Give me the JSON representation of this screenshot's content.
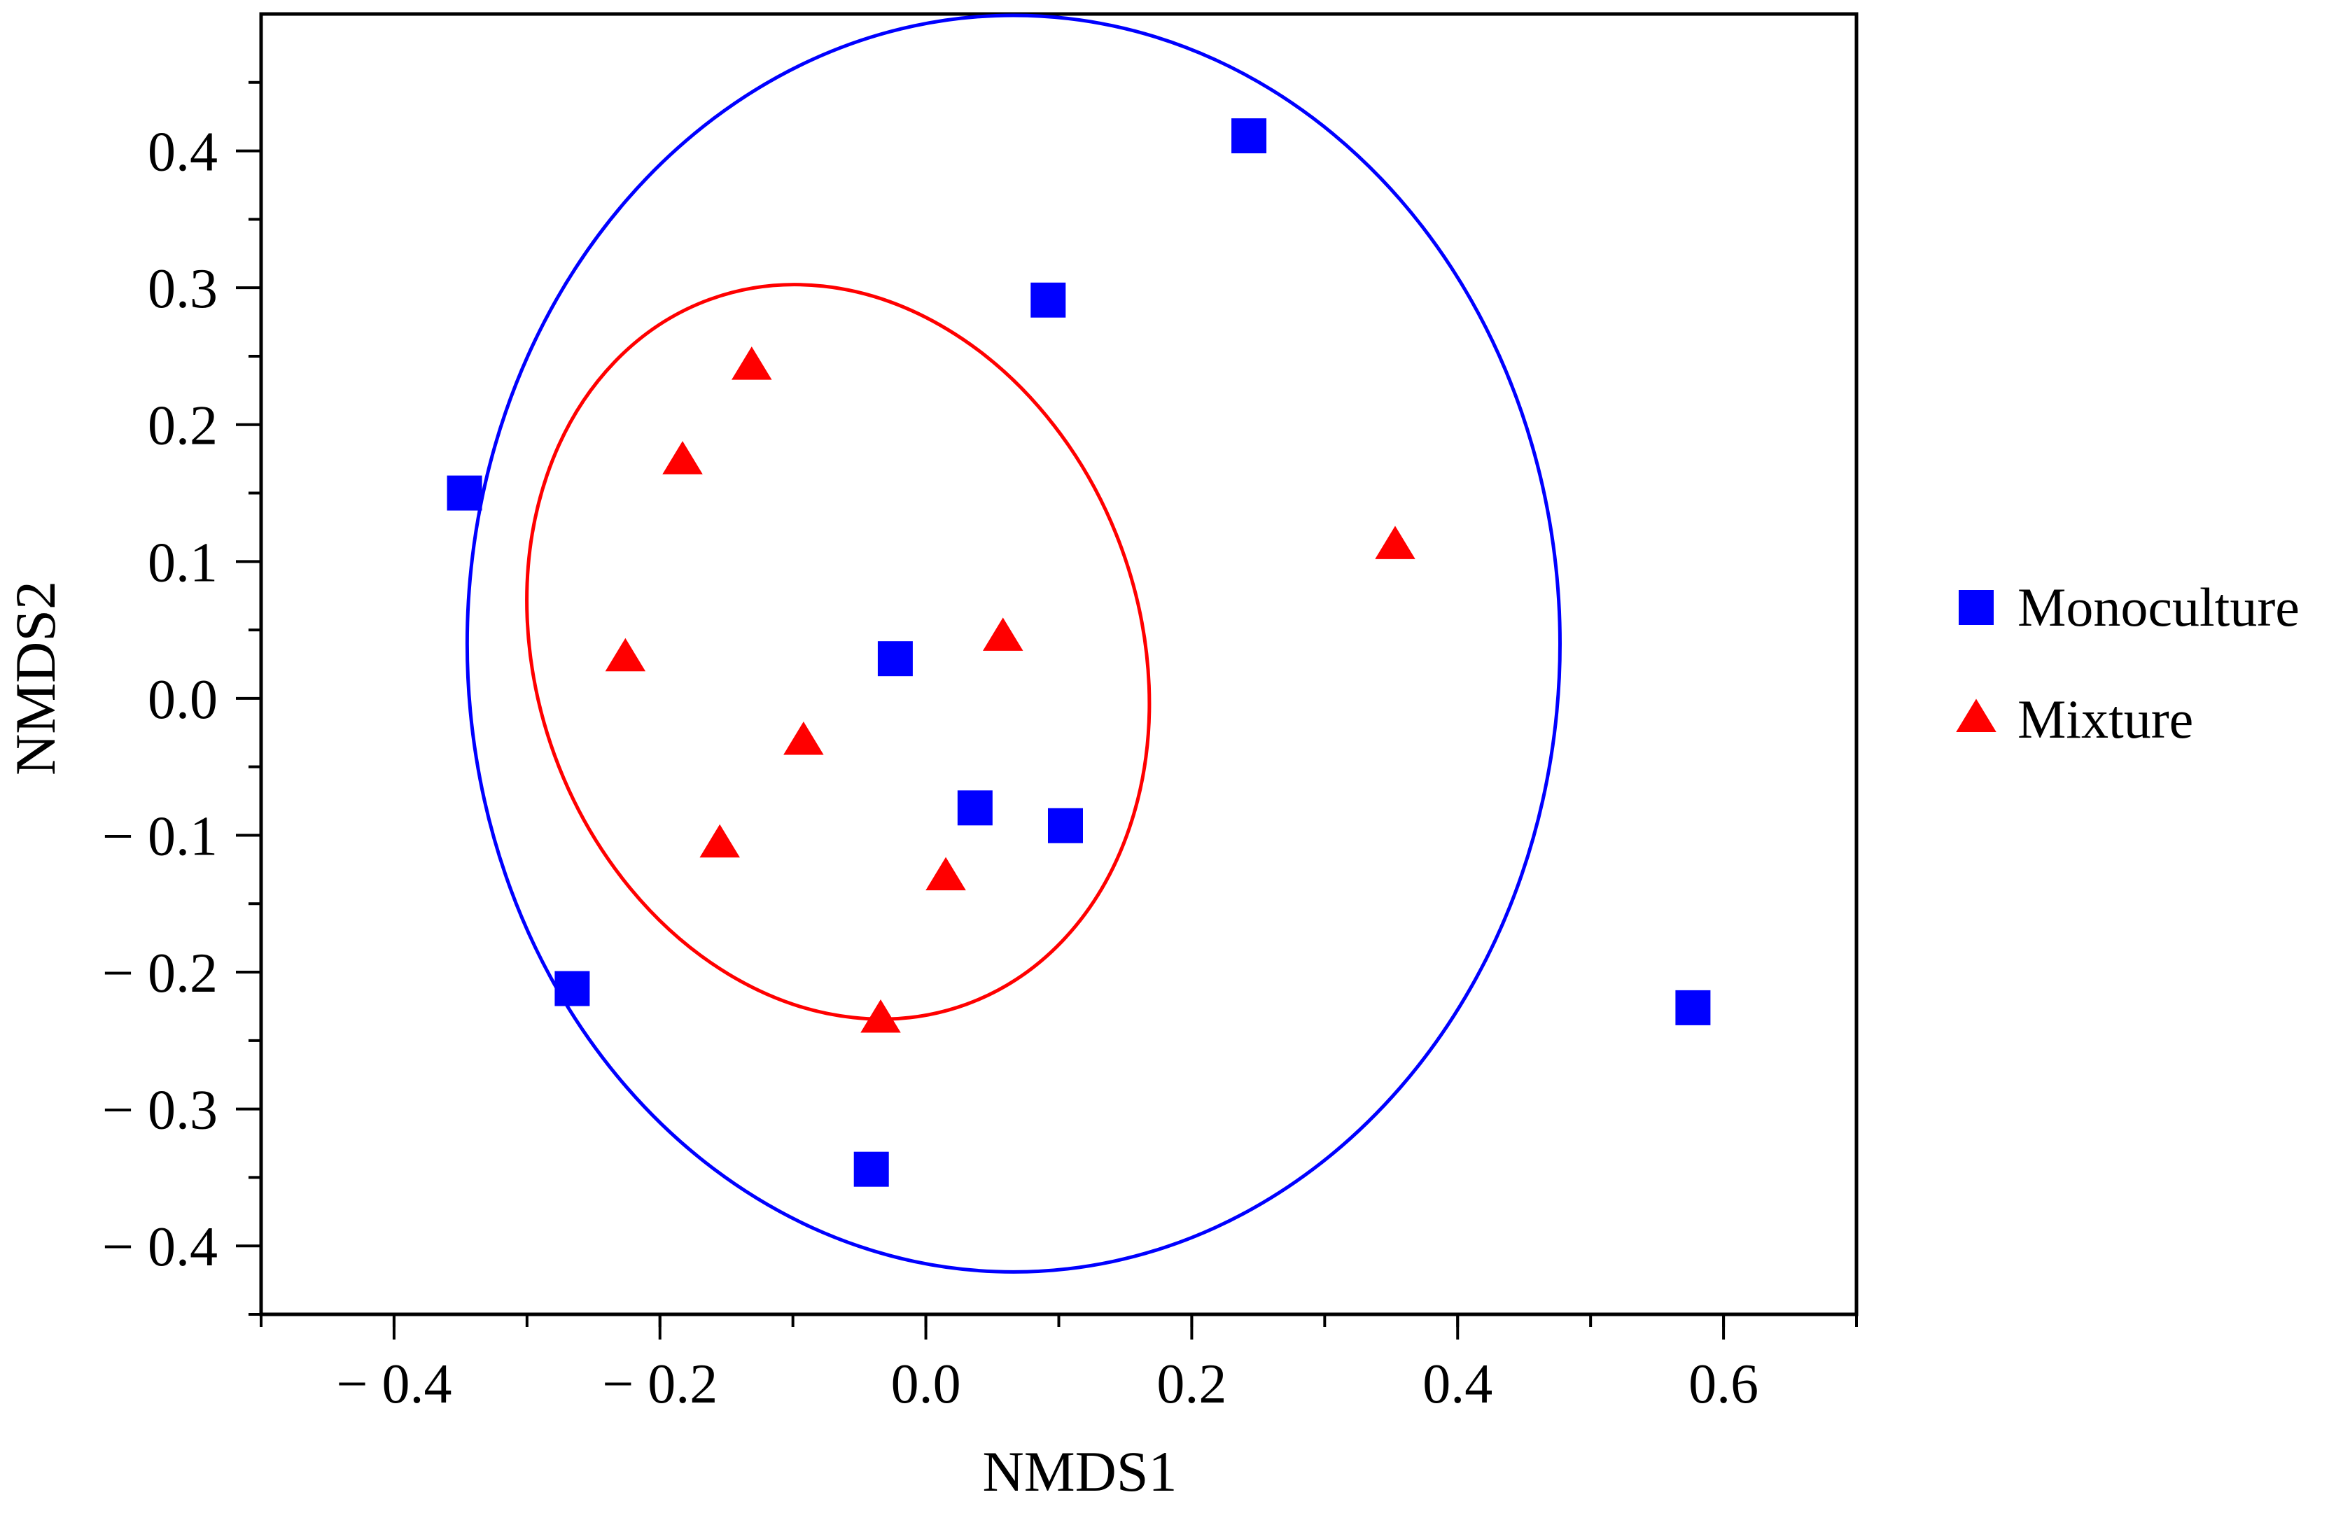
{
  "chart_data": {
    "type": "scatter",
    "title": "",
    "xlabel": "NMDS1",
    "ylabel": "NMDS2",
    "xlim": [
      -0.5,
      0.7
    ],
    "ylim": [
      -0.45,
      0.5
    ],
    "xticks": [
      -0.4,
      -0.2,
      0.0,
      0.2,
      0.4,
      0.6
    ],
    "xtick_labels": [
      "− 0.4",
      "− 0.2",
      "0.0",
      "0.2",
      "0.4",
      "0.6"
    ],
    "yticks": [
      0.4,
      0.3,
      0.2,
      0.1,
      0.0,
      -0.1,
      -0.2,
      -0.3,
      -0.4
    ],
    "ytick_labels": [
      "0.4",
      "0.3",
      "0.2",
      "0.1",
      "0.0",
      "− 0.1",
      "− 0.2",
      "− 0.3",
      "− 0.4"
    ],
    "grid": false,
    "legend_position": "right",
    "series": [
      {
        "name": "Monoculture",
        "marker": "square",
        "color": "#0000ff",
        "points": [
          [
            0.243,
            0.411
          ],
          [
            0.092,
            0.291
          ],
          [
            -0.347,
            0.15
          ],
          [
            -0.023,
            0.029
          ],
          [
            0.037,
            -0.08
          ],
          [
            0.105,
            -0.093
          ],
          [
            -0.266,
            -0.212
          ],
          [
            0.577,
            -0.226
          ],
          [
            -0.041,
            -0.344
          ]
        ]
      },
      {
        "name": "Mixture",
        "marker": "triangle",
        "color": "#ff0000",
        "points": [
          [
            -0.131,
            0.242
          ],
          [
            -0.183,
            0.173
          ],
          [
            0.353,
            0.111
          ],
          [
            -0.226,
            0.029
          ],
          [
            0.058,
            0.044
          ],
          [
            -0.092,
            -0.032
          ],
          [
            -0.155,
            -0.107
          ],
          [
            0.015,
            -0.131
          ],
          [
            -0.034,
            -0.235
          ]
        ]
      }
    ],
    "ellipses": [
      {
        "color": "#0000ff",
        "center": [
          0.066,
          0.04
        ],
        "rx": 0.411,
        "ry": 0.459,
        "angle": 0
      },
      {
        "color": "#ff0000",
        "center": [
          -0.066,
          0.034
        ],
        "rx": 0.227,
        "ry": 0.274,
        "angle": -20
      }
    ]
  }
}
